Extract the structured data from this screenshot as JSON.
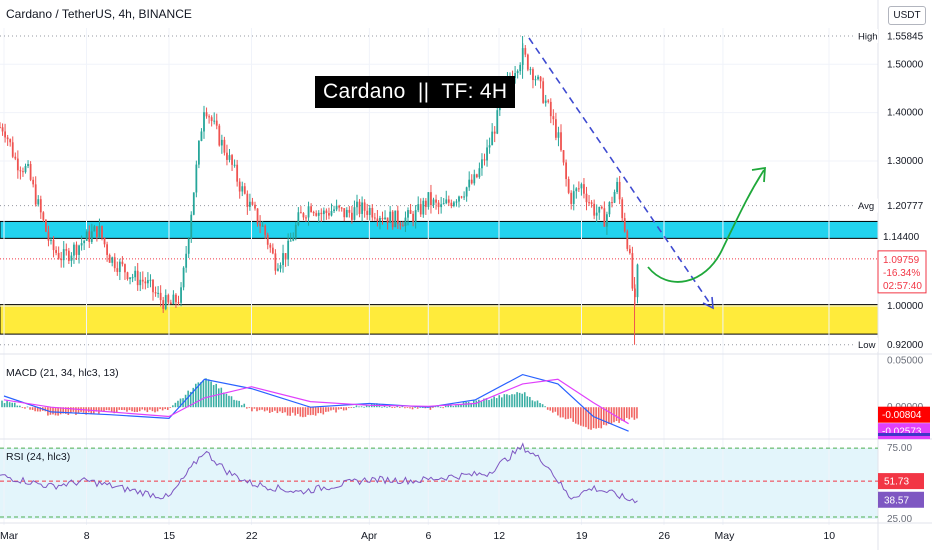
{
  "header": {
    "symbol_line": "Cardano / TetherUS, 4h, BINANCE",
    "unit_button": "USDT"
  },
  "annotation": {
    "title": "Cardano  ||  TF: 4H",
    "colors": {
      "resistance_zone": "#22d3ee",
      "support_zone": "#ffeb3b",
      "projection_up": "#1fa83a",
      "projection_down": "#3f4bd1"
    }
  },
  "chart_data": [
    {
      "type": "candlestick",
      "title": "Cardano / TetherUS, 4h, BINANCE",
      "y_unit": "USDT",
      "ylim": [
        0.905,
        1.575
      ],
      "yticks": [
        "1.50000",
        "1.40000",
        "1.30000",
        "1.00000"
      ],
      "x_ticks": [
        {
          "label": "Mar",
          "date": "Mar 1"
        },
        {
          "label": "8",
          "date": "Mar 8"
        },
        {
          "label": "15",
          "date": "Mar 15"
        },
        {
          "label": "22",
          "date": "Mar 22"
        },
        {
          "label": "Apr",
          "date": "Apr 1"
        },
        {
          "label": "6",
          "date": "Apr 6"
        },
        {
          "label": "12",
          "date": "Apr 12"
        },
        {
          "label": "19",
          "date": "Apr 19"
        },
        {
          "label": "26",
          "date": "Apr 26"
        },
        {
          "label": "May",
          "date": "May 1"
        },
        {
          "label": "10",
          "date": "May 10"
        }
      ],
      "colors": {
        "up": "#26a69a",
        "down": "#ef5350"
      },
      "series": [
        {
          "name": "ADA/USDT close (approx.)",
          "points": [
            [
              "Mar 1",
              1.37
            ],
            [
              "Mar 2",
              1.3
            ],
            [
              "Mar 3",
              1.28
            ],
            [
              "Mar 4",
              1.2
            ],
            [
              "Mar 5",
              1.12
            ],
            [
              "Mar 6",
              1.1
            ],
            [
              "Mar 7",
              1.12
            ],
            [
              "Mar 8",
              1.14
            ],
            [
              "Mar 9",
              1.16
            ],
            [
              "Mar 10",
              1.1
            ],
            [
              "Mar 11",
              1.08
            ],
            [
              "Mar 12",
              1.06
            ],
            [
              "Mar 13",
              1.05
            ],
            [
              "Mar 14",
              1.02
            ],
            [
              "Mar 15",
              1.0
            ],
            [
              "Mar 16",
              1.02
            ],
            [
              "Mar 17",
              1.22
            ],
            [
              "Mar 18",
              1.42
            ],
            [
              "Mar 19",
              1.36
            ],
            [
              "Mar 20",
              1.31
            ],
            [
              "Mar 21",
              1.25
            ],
            [
              "Mar 22",
              1.2
            ],
            [
              "Mar 23",
              1.16
            ],
            [
              "Mar 24",
              1.09
            ],
            [
              "Mar 25",
              1.11
            ],
            [
              "Mar 26",
              1.18
            ],
            [
              "Mar 27",
              1.21
            ],
            [
              "Mar 28",
              1.19
            ],
            [
              "Mar 29",
              1.2
            ],
            [
              "Mar 30",
              1.19
            ],
            [
              "Mar 31",
              1.2
            ],
            [
              "Apr 1",
              1.2
            ],
            [
              "Apr 2",
              1.19
            ],
            [
              "Apr 3",
              1.18
            ],
            [
              "Apr 4",
              1.18
            ],
            [
              "Apr 5",
              1.19
            ],
            [
              "Apr 6",
              1.22
            ],
            [
              "Apr 7",
              1.2
            ],
            [
              "Apr 8",
              1.22
            ],
            [
              "Apr 9",
              1.24
            ],
            [
              "Apr 10",
              1.26
            ],
            [
              "Apr 11",
              1.32
            ],
            [
              "Apr 12",
              1.4
            ],
            [
              "Apr 13",
              1.48
            ],
            [
              "Apr 14",
              1.52
            ],
            [
              "Apr 15",
              1.48
            ],
            [
              "Apr 16",
              1.42
            ],
            [
              "Apr 17",
              1.35
            ],
            [
              "Apr 18",
              1.22
            ],
            [
              "Apr 19",
              1.25
            ],
            [
              "Apr 20",
              1.2
            ],
            [
              "Apr 21",
              1.18
            ],
            [
              "Apr 22",
              1.25
            ],
            [
              "Apr 23",
              1.12
            ],
            [
              "Apr 23 12h",
              0.99
            ],
            [
              "Apr 23 20h",
              1.09759
            ]
          ]
        }
      ],
      "price_labels": [
        {
          "label": "High",
          "value": "1.55845",
          "color": "#131722"
        },
        {
          "label": "Avg",
          "value": "1.20777",
          "color": "#131722"
        },
        {
          "label": "",
          "value": "1.14400",
          "color": "#131722"
        },
        {
          "label": "",
          "value": "1.09759",
          "color": "#f23645"
        },
        {
          "label": "",
          "value": "-16.34%",
          "color": "#f23645"
        },
        {
          "label": "",
          "value": "02:57:40",
          "color": "#f23645"
        },
        {
          "label": "Low",
          "value": "0.92000",
          "color": "#131722"
        }
      ],
      "zones": [
        {
          "name": "resistance",
          "from": 1.14,
          "to": 1.175,
          "color": "#22d3ee"
        },
        {
          "name": "support",
          "from": 0.942,
          "to": 1.003,
          "color": "#ffeb3b"
        }
      ]
    },
    {
      "type": "line",
      "title": "MACD (21, 34, hlc3, 13)",
      "ylim": [
        -0.032,
        0.055
      ],
      "yticks": [
        "0.05000",
        "0.00000"
      ],
      "series": [
        {
          "name": "",
          "color": "#2962ff",
          "points": [
            [
              "Mar 1",
              0.012
            ],
            [
              "Mar 5",
              -0.005
            ],
            [
              "Mar 10",
              -0.008
            ],
            [
              "Mar 15",
              -0.012
            ],
            [
              "Mar 18",
              0.03
            ],
            [
              "Mar 22",
              0.02
            ],
            [
              "Mar 27",
              0.0
            ],
            [
              "Apr 1",
              0.004
            ],
            [
              "Apr 6",
              0.0
            ],
            [
              "Apr 10",
              0.008
            ],
            [
              "Apr 14",
              0.035
            ],
            [
              "Apr 17",
              0.025
            ],
            [
              "Apr 20",
              -0.01
            ],
            [
              "Apr 23",
              -0.02573
            ]
          ]
        },
        {
          "name": "",
          "color": "#e040fb",
          "points": [
            [
              "Mar 1",
              0.008
            ],
            [
              "Mar 5",
              0.0
            ],
            [
              "Mar 10",
              -0.005
            ],
            [
              "Mar 15",
              -0.01
            ],
            [
              "Mar 18",
              0.01
            ],
            [
              "Mar 22",
              0.022
            ],
            [
              "Mar 27",
              0.006
            ],
            [
              "Apr 1",
              0.002
            ],
            [
              "Apr 6",
              0.001
            ],
            [
              "Apr 10",
              0.004
            ],
            [
              "Apr 14",
              0.025
            ],
            [
              "Apr 17",
              0.03
            ],
            [
              "Apr 20",
              0.005
            ],
            [
              "Apr 23",
              -0.01769
            ]
          ]
        }
      ],
      "value_labels": [
        {
          "value": "-0.00804",
          "color": "#ff0000"
        },
        {
          "value": "-0.02573",
          "color": "#e040fb"
        }
      ]
    },
    {
      "type": "line",
      "title": "RSI (24, hlc3)",
      "ylim": [
        25,
        80
      ],
      "yticks": [
        "75.00",
        "25.00"
      ],
      "levels": [
        75,
        51.73
      ],
      "series": [
        {
          "name": "",
          "color": "#7e57c2",
          "points": [
            [
              "Mar 1",
              55
            ],
            [
              "Mar 5",
              48
            ],
            [
              "Mar 8",
              52
            ],
            [
              "Mar 12",
              45
            ],
            [
              "Mar 15",
              40
            ],
            [
              "Mar 18",
              73
            ],
            [
              "Mar 20",
              58
            ],
            [
              "Mar 22",
              50
            ],
            [
              "Mar 26",
              44
            ],
            [
              "Apr 1",
              53
            ],
            [
              "Apr 5",
              52
            ],
            [
              "Apr 8",
              55
            ],
            [
              "Apr 11",
              57
            ],
            [
              "Apr 14",
              76
            ],
            [
              "Apr 16",
              64
            ],
            [
              "Apr 18",
              40
            ],
            [
              "Apr 20",
              47
            ],
            [
              "Apr 22",
              42
            ],
            [
              "Apr 23",
              38.57
            ]
          ]
        }
      ],
      "value_labels": [
        {
          "value": "51.73",
          "color": "#f23645"
        },
        {
          "value": "38.57",
          "color": "#7e57c2"
        }
      ]
    }
  ]
}
